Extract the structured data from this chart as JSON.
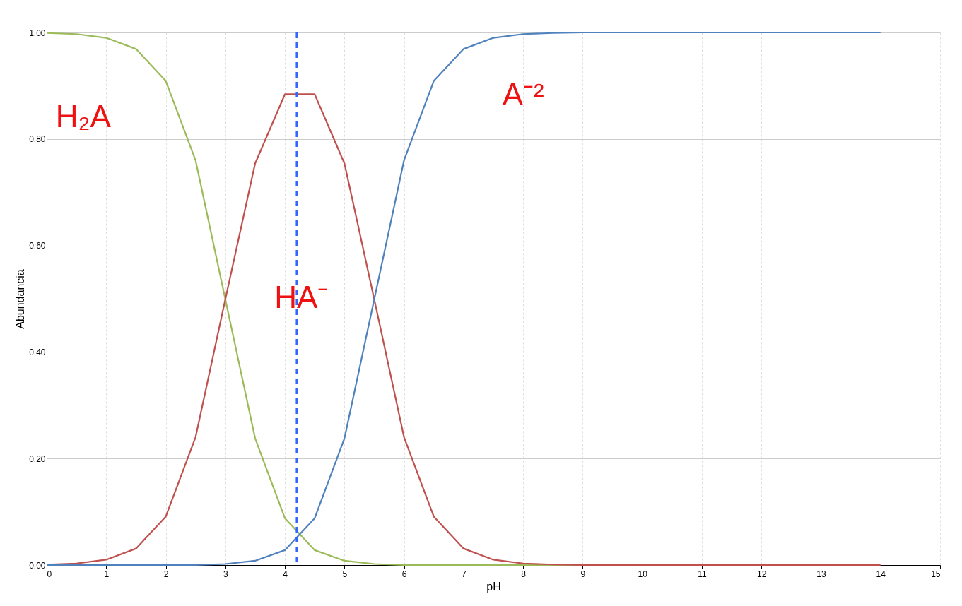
{
  "chart_data": {
    "type": "line",
    "xlabel": "pH",
    "ylabel": "Abundancia",
    "x": [
      0,
      0.5,
      1,
      1.5,
      2,
      2.5,
      3,
      3.5,
      4,
      4.5,
      5,
      5.5,
      6,
      6.5,
      7,
      7.5,
      8,
      8.5,
      9,
      9.5,
      10,
      10.5,
      11,
      11.5,
      12,
      12.5,
      13,
      13.5,
      14
    ],
    "series": [
      {
        "color": "#9bbb59",
        "values": [
          0.999,
          0.997,
          0.99,
          0.969,
          0.909,
          0.76,
          0.499,
          0.238,
          0.088,
          0.028,
          0.008,
          0.002,
          0,
          0,
          0,
          0,
          0,
          0,
          0,
          null,
          null,
          null,
          null,
          null,
          null,
          null,
          null,
          null,
          null
        ]
      },
      {
        "color": "#c0504d",
        "values": [
          0.001,
          0.003,
          0.01,
          0.031,
          0.091,
          0.24,
          0.499,
          0.754,
          0.884,
          0.884,
          0.754,
          0.499,
          0.24,
          0.091,
          0.031,
          0.01,
          0.003,
          0.001,
          0,
          0,
          0,
          0,
          0,
          0,
          0,
          0,
          0,
          0,
          0
        ]
      },
      {
        "color": "#4f81bd",
        "values": [
          0,
          0,
          0,
          0,
          0,
          0,
          0.002,
          0.008,
          0.028,
          0.088,
          0.238,
          0.499,
          0.76,
          0.909,
          0.969,
          0.99,
          0.997,
          0.999,
          1,
          1,
          1,
          1,
          1,
          1,
          1,
          1,
          1,
          1,
          1
        ]
      }
    ],
    "xlim": [
      0,
      15
    ],
    "xticks": [
      0,
      1,
      2,
      3,
      4,
      5,
      6,
      7,
      8,
      9,
      10,
      11,
      12,
      13,
      14,
      15
    ],
    "ylim": [
      0,
      1
    ],
    "yticks": [
      {
        "value": 0,
        "label": "0.00"
      },
      {
        "value": 0.2,
        "label": "0.20"
      },
      {
        "value": 0.4,
        "label": "0.40"
      },
      {
        "value": 0.6,
        "label": "0.60"
      },
      {
        "value": 0.8,
        "label": "0.80"
      },
      {
        "value": 1,
        "label": "1.00"
      }
    ],
    "grid": true,
    "ref_lines": [
      {
        "axis": "x",
        "value": 4.2,
        "color": "#3366ff",
        "line_style": "dashed"
      }
    ],
    "annotations": [
      "H₂A",
      "HA⁻",
      "A⁻²"
    ]
  }
}
